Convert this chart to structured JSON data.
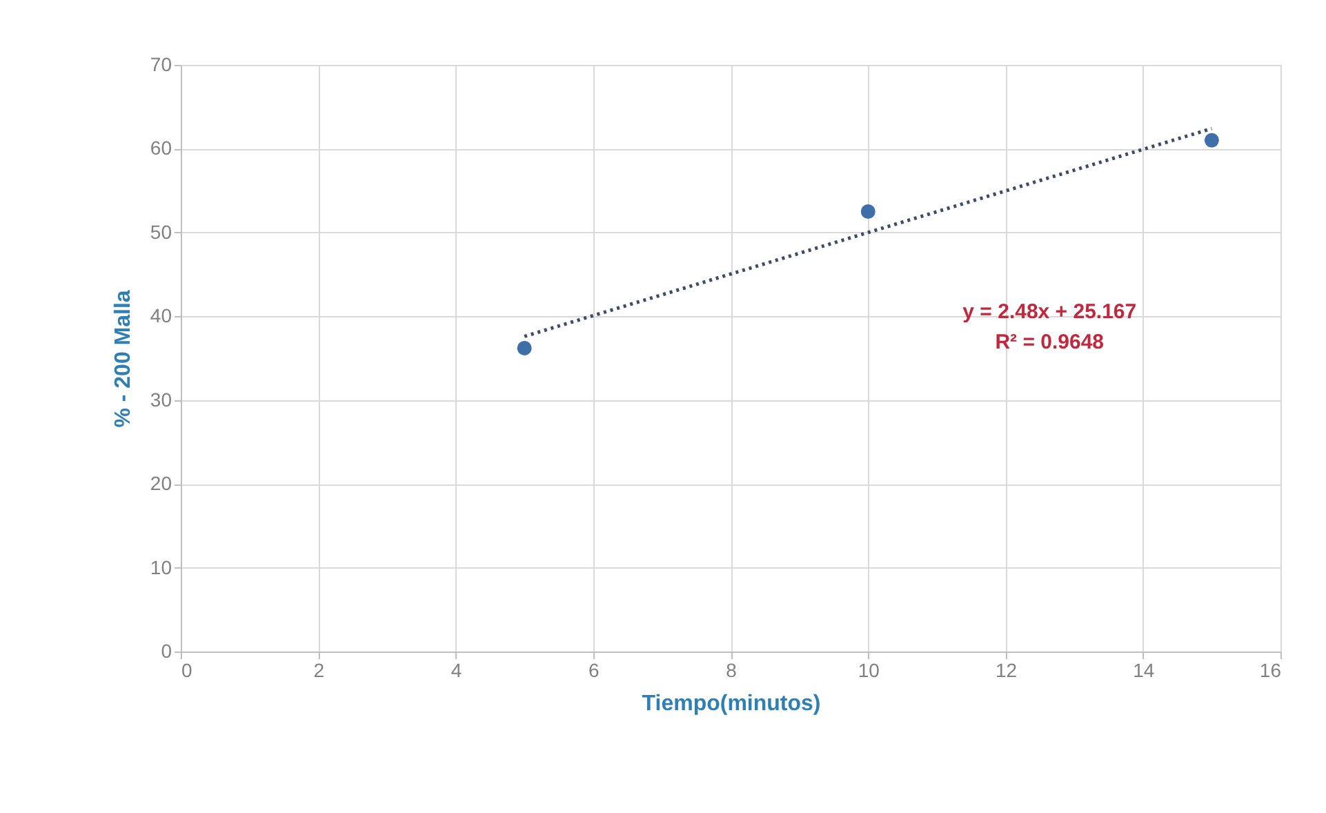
{
  "chart_data": {
    "type": "scatter",
    "xlabel": "Tiempo(minutos)",
    "ylabel": "% - 200 Malla",
    "xlim": [
      0,
      16
    ],
    "xticks": [
      0,
      2,
      4,
      6,
      8,
      10,
      12,
      14,
      16
    ],
    "ylim": [
      0,
      70
    ],
    "yticks": [
      0,
      10,
      20,
      30,
      40,
      50,
      60,
      70
    ],
    "grid": true,
    "series": [
      {
        "color": "#3e6fa8",
        "marker": "circle",
        "x": [
          5,
          10,
          15
        ],
        "values": [
          36.2,
          52.5,
          61.0
        ]
      },
      {
        "type": "line",
        "color": "#3d4b66",
        "line_style": "dotted",
        "x": [
          5,
          15
        ],
        "values": [
          37.6,
          62.4
        ]
      }
    ],
    "annotations": [
      "y = 2.48x + 25.167",
      "R² = 0.9648"
    ]
  }
}
